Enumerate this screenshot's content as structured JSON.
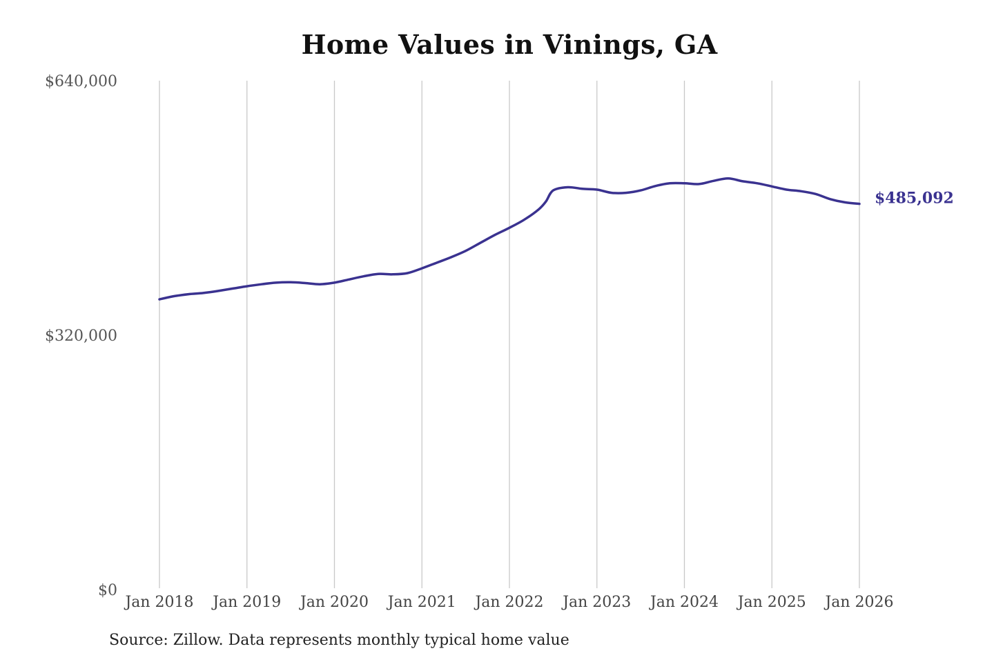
{
  "chart_data": {
    "type": "line",
    "title": "Home Values in Vinings, GA",
    "xlabel": "",
    "ylabel": "",
    "ylim": [
      0,
      640000
    ],
    "y_ticks": [
      {
        "value": 0,
        "label": "$0"
      },
      {
        "value": 320000,
        "label": "$320,000"
      },
      {
        "value": 640000,
        "label": "$640,000"
      }
    ],
    "x_range": [
      2018.0,
      2026.0
    ],
    "x_ticks": [
      {
        "value": 2018,
        "label": "Jan 2018"
      },
      {
        "value": 2019,
        "label": "Jan 2019"
      },
      {
        "value": 2020,
        "label": "Jan 2020"
      },
      {
        "value": 2021,
        "label": "Jan 2021"
      },
      {
        "value": 2022,
        "label": "Jan 2022"
      },
      {
        "value": 2023,
        "label": "Jan 2023"
      },
      {
        "value": 2024,
        "label": "Jan 2024"
      },
      {
        "value": 2025,
        "label": "Jan 2025"
      },
      {
        "value": 2026,
        "label": "Jan 2026"
      }
    ],
    "grid": {
      "vertical": true,
      "horizontal": false
    },
    "legend": "none",
    "series": [
      {
        "color": "#3a3290",
        "x": [
          "Jan 2018",
          "Mar 2018",
          "May 2018",
          "Jul 2018",
          "Sep 2018",
          "Nov 2018",
          "Jan 2019",
          "Mar 2019",
          "May 2019",
          "Jul 2019",
          "Sep 2019",
          "Nov 2019",
          "Jan 2020",
          "Mar 2020",
          "May 2020",
          "Jul 2020",
          "Sep 2020",
          "Nov 2020",
          "Jan 2021",
          "Mar 2021",
          "May 2021",
          "Jul 2021",
          "Sep 2021",
          "Nov 2021",
          "Jan 2022",
          "Mar 2022",
          "May 2022",
          "Jun 2022",
          "Jul 2022",
          "Sep 2022",
          "Nov 2022",
          "Jan 2023",
          "Mar 2023",
          "May 2023",
          "Jul 2023",
          "Sep 2023",
          "Nov 2023",
          "Jan 2024",
          "Mar 2024",
          "May 2024",
          "Jul 2024",
          "Sep 2024",
          "Nov 2024",
          "Jan 2025",
          "Mar 2025",
          "May 2025",
          "Jul 2025",
          "Sep 2025",
          "Nov 2025",
          "Jan 2026"
        ],
        "values": [
          365000,
          369000,
          371500,
          373000,
          375500,
          378500,
          381500,
          384000,
          386000,
          386500,
          385500,
          384000,
          386000,
          390000,
          394000,
          397000,
          396500,
          398000,
          404000,
          411000,
          418000,
          426000,
          436000,
          446000,
          455000,
          465000,
          478000,
          488000,
          502000,
          506000,
          504000,
          503000,
          499000,
          499000,
          502000,
          507500,
          511000,
          511000,
          510000,
          514000,
          517000,
          513500,
          511000,
          507000,
          503000,
          501000,
          497500,
          491000,
          487000,
          485092
        ]
      }
    ],
    "end_label": "$485,092"
  },
  "source_note": "Source: Zillow. Data represents monthly typical home value"
}
